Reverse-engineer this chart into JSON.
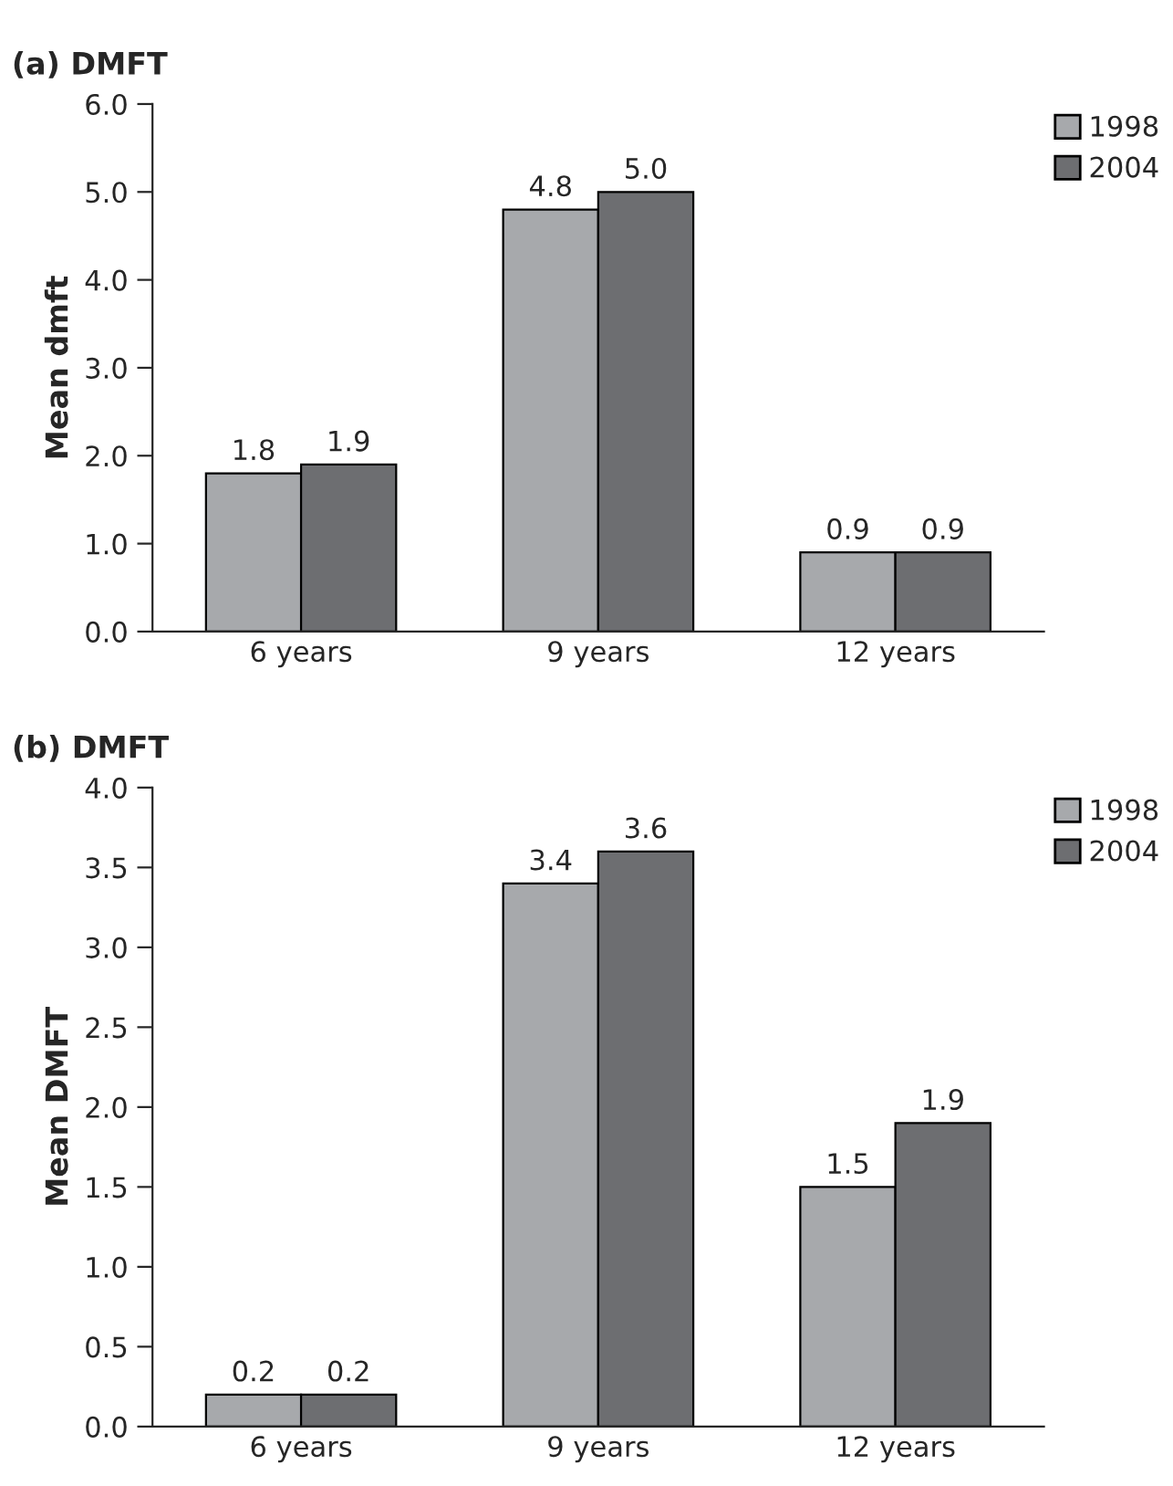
{
  "chart_data": [
    {
      "type": "bar",
      "title": "(a) DMFT",
      "ylabel": "Mean dmft",
      "categories": [
        "6 years",
        "9 years",
        "12 years"
      ],
      "series": [
        {
          "name": "1998",
          "color": "#a7a9ac",
          "values": [
            1.8,
            4.8,
            0.9
          ],
          "value_labels": [
            "1.8",
            "4.8",
            "0.9"
          ]
        },
        {
          "name": "2004",
          "color": "#6d6e71",
          "values": [
            1.9,
            5.0,
            0.9
          ],
          "value_labels": [
            "1.9",
            "5.0",
            "0.9"
          ]
        }
      ],
      "ylim": [
        0,
        6
      ],
      "yticks": [
        {
          "value": 0,
          "label": "0.0"
        },
        {
          "value": 1,
          "label": "1.0"
        },
        {
          "value": 2,
          "label": "2.0"
        },
        {
          "value": 3,
          "label": "3.0"
        },
        {
          "value": 4,
          "label": "4.0"
        },
        {
          "value": 5,
          "label": "5.0"
        },
        {
          "value": 6,
          "label": "6.0"
        }
      ],
      "legend": "top right",
      "grid": false
    },
    {
      "type": "bar",
      "title": "(b) DMFT",
      "ylabel": "Mean DMFT",
      "categories": [
        "6 years",
        "9 years",
        "12 years"
      ],
      "series": [
        {
          "name": "1998",
          "color": "#a7a9ac",
          "values": [
            0.2,
            3.4,
            1.5
          ],
          "value_labels": [
            "0.2",
            "3.4",
            "1.5"
          ]
        },
        {
          "name": "2004",
          "color": "#6d6e71",
          "values": [
            0.2,
            3.6,
            1.9
          ],
          "value_labels": [
            "0.2",
            "3.6",
            "1.9"
          ]
        }
      ],
      "ylim": [
        0,
        4
      ],
      "yticks": [
        {
          "value": 0,
          "label": "0.0"
        },
        {
          "value": 0.5,
          "label": "0.5"
        },
        {
          "value": 1,
          "label": "1.0"
        },
        {
          "value": 1.5,
          "label": "1.5"
        },
        {
          "value": 2,
          "label": "2.0"
        },
        {
          "value": 2.5,
          "label": "2.5"
        },
        {
          "value": 3,
          "label": "3.0"
        },
        {
          "value": 3.5,
          "label": "3.5"
        },
        {
          "value": 4,
          "label": "4.0"
        }
      ],
      "legend": "top right",
      "grid": false
    }
  ]
}
